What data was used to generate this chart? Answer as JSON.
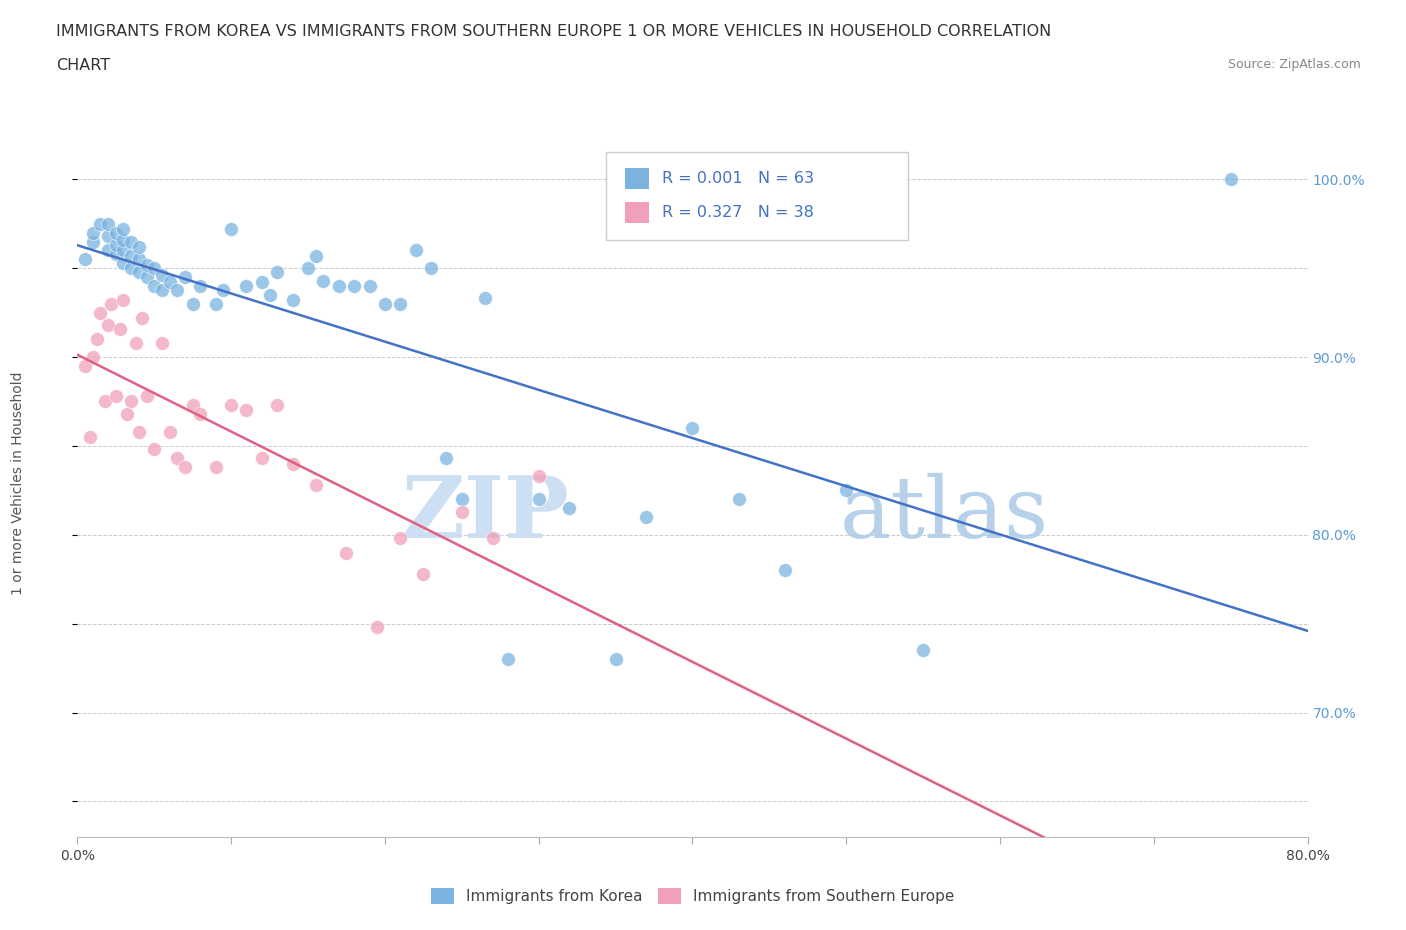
{
  "title_line1": "IMMIGRANTS FROM KOREA VS IMMIGRANTS FROM SOUTHERN EUROPE 1 OR MORE VEHICLES IN HOUSEHOLD CORRELATION",
  "title_line2": "CHART",
  "source_text": "Source: ZipAtlas.com",
  "ylabel": "1 or more Vehicles in Household",
  "legend_label1": "Immigrants from Korea",
  "legend_label2": "Immigrants from Southern Europe",
  "R1": 0.001,
  "N1": 63,
  "R2": 0.327,
  "N2": 38,
  "xlim": [
    0.0,
    0.8
  ],
  "ylim": [
    0.63,
    1.025
  ],
  "color_korea": "#7ab3e0",
  "color_southern": "#f0a0b8",
  "line_color_korea": "#4472c4",
  "line_color_southern": "#e06080",
  "korea_x": [
    0.005,
    0.01,
    0.01,
    0.015,
    0.02,
    0.02,
    0.02,
    0.025,
    0.025,
    0.025,
    0.03,
    0.03,
    0.03,
    0.03,
    0.035,
    0.035,
    0.035,
    0.04,
    0.04,
    0.04,
    0.045,
    0.045,
    0.05,
    0.05,
    0.055,
    0.055,
    0.06,
    0.065,
    0.07,
    0.075,
    0.08,
    0.09,
    0.095,
    0.1,
    0.11,
    0.12,
    0.125,
    0.13,
    0.14,
    0.15,
    0.155,
    0.16,
    0.17,
    0.18,
    0.19,
    0.2,
    0.21,
    0.22,
    0.23,
    0.24,
    0.25,
    0.265,
    0.28,
    0.3,
    0.32,
    0.35,
    0.37,
    0.4,
    0.43,
    0.46,
    0.5,
    0.55,
    0.75
  ],
  "korea_y": [
    0.955,
    0.965,
    0.97,
    0.975,
    0.96,
    0.968,
    0.975,
    0.958,
    0.963,
    0.97,
    0.953,
    0.96,
    0.966,
    0.972,
    0.95,
    0.957,
    0.965,
    0.948,
    0.955,
    0.962,
    0.945,
    0.952,
    0.94,
    0.95,
    0.938,
    0.946,
    0.942,
    0.938,
    0.945,
    0.93,
    0.94,
    0.93,
    0.938,
    0.972,
    0.94,
    0.942,
    0.935,
    0.948,
    0.932,
    0.95,
    0.957,
    0.943,
    0.94,
    0.94,
    0.94,
    0.93,
    0.93,
    0.96,
    0.95,
    0.843,
    0.82,
    0.933,
    0.73,
    0.82,
    0.815,
    0.73,
    0.81,
    0.86,
    0.82,
    0.78,
    0.825,
    0.735,
    1.0
  ],
  "southern_x": [
    0.005,
    0.008,
    0.01,
    0.013,
    0.015,
    0.018,
    0.02,
    0.022,
    0.025,
    0.028,
    0.03,
    0.032,
    0.035,
    0.038,
    0.04,
    0.042,
    0.045,
    0.05,
    0.055,
    0.06,
    0.065,
    0.07,
    0.075,
    0.08,
    0.09,
    0.1,
    0.11,
    0.12,
    0.13,
    0.14,
    0.155,
    0.175,
    0.195,
    0.21,
    0.225,
    0.25,
    0.27,
    0.3
  ],
  "southern_y": [
    0.895,
    0.855,
    0.9,
    0.91,
    0.925,
    0.875,
    0.918,
    0.93,
    0.878,
    0.916,
    0.932,
    0.868,
    0.875,
    0.908,
    0.858,
    0.922,
    0.878,
    0.848,
    0.908,
    0.858,
    0.843,
    0.838,
    0.873,
    0.868,
    0.838,
    0.873,
    0.87,
    0.843,
    0.873,
    0.84,
    0.828,
    0.79,
    0.748,
    0.798,
    0.778,
    0.813,
    0.798,
    0.833
  ],
  "ytick_positions": [
    0.65,
    0.7,
    0.75,
    0.8,
    0.85,
    0.9,
    0.95,
    1.0
  ],
  "ytick_labels_right": [
    "",
    "70.0%",
    "",
    "80.0%",
    "",
    "90.0%",
    "",
    "100.0%"
  ],
  "xtick_positions": [
    0.0,
    0.1,
    0.2,
    0.3,
    0.4,
    0.5,
    0.6,
    0.7,
    0.8
  ],
  "xtick_labels": [
    "0.0%",
    "",
    "",
    "",
    "",
    "",
    "",
    "",
    "80.0%"
  ]
}
